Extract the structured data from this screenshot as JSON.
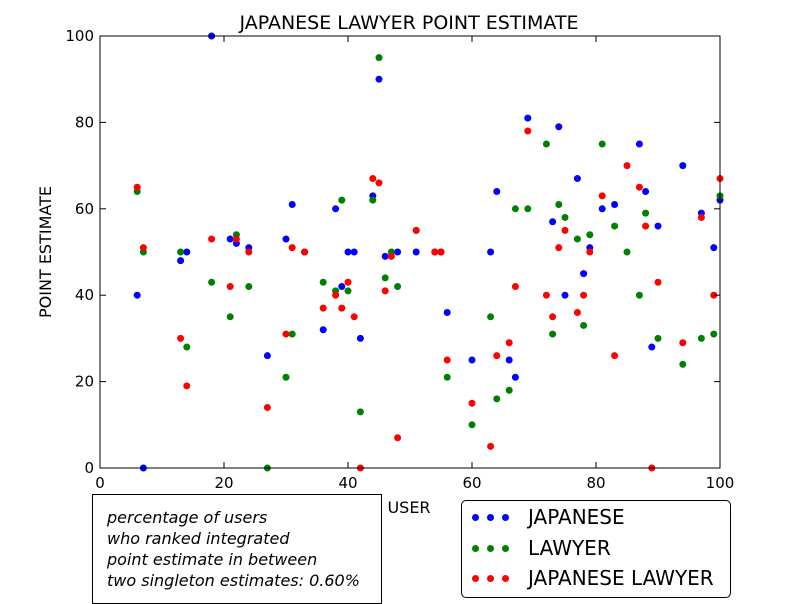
{
  "chart_data": {
    "type": "scatter",
    "title": "JAPANESE LAWYER POINT ESTIMATE",
    "xlabel": "USER",
    "ylabel": "POINT ESTIMATE",
    "xlim": [
      0,
      100
    ],
    "ylim": [
      0,
      100
    ],
    "xticks": [
      "0",
      "20",
      "40",
      "60",
      "80",
      "100"
    ],
    "yticks": [
      "0",
      "20",
      "40",
      "60",
      "80",
      "100"
    ],
    "grid": false,
    "legend_position": "bottom-right outside",
    "series": [
      {
        "name": "JAPANESE",
        "color": "#0000ff",
        "points": [
          [
            6,
            40
          ],
          [
            7,
            0
          ],
          [
            13,
            48
          ],
          [
            14,
            50
          ],
          [
            18,
            100
          ],
          [
            21,
            53
          ],
          [
            22,
            52
          ],
          [
            24,
            51
          ],
          [
            27,
            26
          ],
          [
            30,
            53
          ],
          [
            31,
            61
          ],
          [
            33,
            50
          ],
          [
            36,
            32
          ],
          [
            38,
            60
          ],
          [
            39,
            42
          ],
          [
            40,
            50
          ],
          [
            41,
            50
          ],
          [
            42,
            30
          ],
          [
            44,
            63
          ],
          [
            45,
            90
          ],
          [
            46,
            49
          ],
          [
            48,
            50
          ],
          [
            51,
            50
          ],
          [
            54,
            50
          ],
          [
            55,
            50
          ],
          [
            56,
            36
          ],
          [
            60,
            25
          ],
          [
            63,
            50
          ],
          [
            64,
            64
          ],
          [
            66,
            25
          ],
          [
            67,
            21
          ],
          [
            69,
            81
          ],
          [
            73,
            57
          ],
          [
            74,
            79
          ],
          [
            75,
            40
          ],
          [
            77,
            67
          ],
          [
            78,
            45
          ],
          [
            79,
            51
          ],
          [
            81,
            60
          ],
          [
            83,
            61
          ],
          [
            87,
            75
          ],
          [
            88,
            64
          ],
          [
            89,
            28
          ],
          [
            90,
            56
          ],
          [
            94,
            70
          ],
          [
            97,
            59
          ],
          [
            99,
            51
          ],
          [
            100,
            62
          ]
        ]
      },
      {
        "name": "LAWYER",
        "color": "#008000",
        "points": [
          [
            6,
            64
          ],
          [
            7,
            50
          ],
          [
            13,
            50
          ],
          [
            14,
            28
          ],
          [
            18,
            43
          ],
          [
            21,
            35
          ],
          [
            22,
            54
          ],
          [
            24,
            42
          ],
          [
            27,
            0
          ],
          [
            30,
            21
          ],
          [
            31,
            31
          ],
          [
            33,
            50
          ],
          [
            36,
            43
          ],
          [
            38,
            41
          ],
          [
            39,
            62
          ],
          [
            40,
            41
          ],
          [
            42,
            13
          ],
          [
            44,
            62
          ],
          [
            45,
            95
          ],
          [
            46,
            44
          ],
          [
            47,
            50
          ],
          [
            48,
            42
          ],
          [
            51,
            55
          ],
          [
            55,
            50
          ],
          [
            56,
            21
          ],
          [
            60,
            10
          ],
          [
            63,
            35
          ],
          [
            64,
            16
          ],
          [
            66,
            18
          ],
          [
            67,
            60
          ],
          [
            69,
            60
          ],
          [
            72,
            75
          ],
          [
            73,
            31
          ],
          [
            74,
            61
          ],
          [
            75,
            58
          ],
          [
            77,
            53
          ],
          [
            78,
            33
          ],
          [
            79,
            54
          ],
          [
            81,
            75
          ],
          [
            83,
            56
          ],
          [
            85,
            50
          ],
          [
            87,
            40
          ],
          [
            88,
            59
          ],
          [
            90,
            30
          ],
          [
            94,
            24
          ],
          [
            97,
            30
          ],
          [
            99,
            31
          ],
          [
            100,
            63
          ]
        ]
      },
      {
        "name": "JAPANESE LAWYER",
        "color": "#ff0000",
        "points": [
          [
            6,
            65
          ],
          [
            7,
            51
          ],
          [
            13,
            30
          ],
          [
            14,
            19
          ],
          [
            18,
            53
          ],
          [
            21,
            42
          ],
          [
            22,
            53
          ],
          [
            24,
            50
          ],
          [
            27,
            14
          ],
          [
            30,
            31
          ],
          [
            31,
            51
          ],
          [
            33,
            50
          ],
          [
            36,
            37
          ],
          [
            38,
            40
          ],
          [
            39,
            37
          ],
          [
            40,
            43
          ],
          [
            41,
            35
          ],
          [
            42,
            0
          ],
          [
            44,
            67
          ],
          [
            45,
            66
          ],
          [
            46,
            41
          ],
          [
            47,
            49
          ],
          [
            48,
            7
          ],
          [
            51,
            55
          ],
          [
            54,
            50
          ],
          [
            55,
            50
          ],
          [
            56,
            25
          ],
          [
            60,
            15
          ],
          [
            63,
            5
          ],
          [
            64,
            26
          ],
          [
            66,
            29
          ],
          [
            67,
            42
          ],
          [
            69,
            78
          ],
          [
            72,
            40
          ],
          [
            73,
            35
          ],
          [
            74,
            51
          ],
          [
            75,
            55
          ],
          [
            77,
            36
          ],
          [
            78,
            40
          ],
          [
            79,
            50
          ],
          [
            81,
            63
          ],
          [
            83,
            26
          ],
          [
            85,
            70
          ],
          [
            87,
            65
          ],
          [
            88,
            56
          ],
          [
            89,
            0
          ],
          [
            90,
            43
          ],
          [
            94,
            29
          ],
          [
            97,
            58
          ],
          [
            99,
            40
          ],
          [
            100,
            67
          ]
        ]
      }
    ],
    "annotation": {
      "lines": [
        "percentage of users",
        "who ranked integrated",
        "point estimate in between",
        "two singleton estimates: 0.60%"
      ]
    }
  }
}
